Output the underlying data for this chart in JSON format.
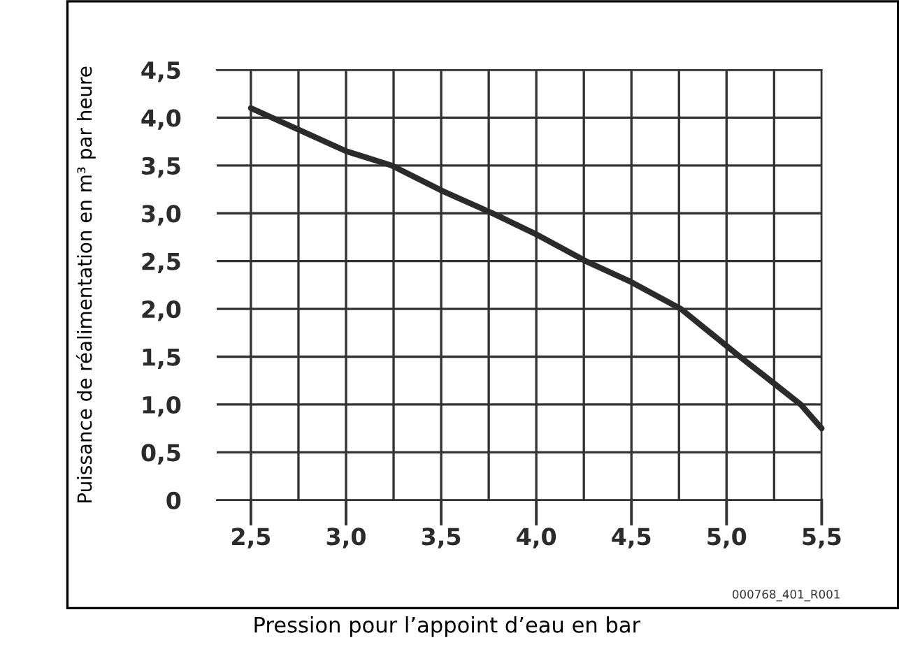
{
  "chart_data": {
    "type": "line",
    "xlabel": "Pression pour l’appoint d’eau en bar",
    "ylabel": "Puissance de réalimentation en m³ par heure",
    "annotations": [
      "000768_401_R001"
    ],
    "series": [
      {
        "color": "#2b2b2b",
        "x": [
          2.5,
          3.0,
          3.24,
          3.51,
          3.77,
          4.0,
          4.26,
          4.5,
          4.76,
          5.07,
          5.25,
          5.39,
          5.5
        ],
        "values": [
          4.1,
          3.65,
          3.5,
          3.23,
          3.0,
          2.78,
          2.5,
          2.28,
          2.0,
          1.5,
          1.22,
          1.0,
          0.75
        ]
      }
    ],
    "xlim": [
      2.32,
      5.5
    ],
    "ylim": [
      0,
      4.5
    ],
    "xticks": [
      {
        "value": 2.5,
        "label": "2,5"
      },
      {
        "value": 2.75,
        "label": null
      },
      {
        "value": 3.0,
        "label": "3,0"
      },
      {
        "value": 3.25,
        "label": null
      },
      {
        "value": 3.5,
        "label": "3,5"
      },
      {
        "value": 3.75,
        "label": null
      },
      {
        "value": 4.0,
        "label": "4,0"
      },
      {
        "value": 4.25,
        "label": null
      },
      {
        "value": 4.5,
        "label": "4,5"
      },
      {
        "value": 4.75,
        "label": null
      },
      {
        "value": 5.0,
        "label": "5,0"
      },
      {
        "value": 5.25,
        "label": null
      },
      {
        "value": 5.5,
        "label": "5,5"
      }
    ],
    "yticks": [
      0,
      {
        "value": 0.5,
        "label": "0,5"
      },
      {
        "value": 1.0,
        "label": "1,0"
      },
      {
        "value": 1.5,
        "label": "1,5"
      },
      {
        "value": 2.0,
        "label": "2,0"
      },
      {
        "value": 2.5,
        "label": "2,5"
      },
      {
        "value": 3.0,
        "label": "3,0"
      },
      {
        "value": 3.5,
        "label": "3,5"
      },
      {
        "value": 4.0,
        "label": "4,0"
      },
      {
        "value": 4.5,
        "label": "4,5"
      }
    ],
    "grid": true,
    "legend": false,
    "marker": "none",
    "line_style": "solid"
  }
}
